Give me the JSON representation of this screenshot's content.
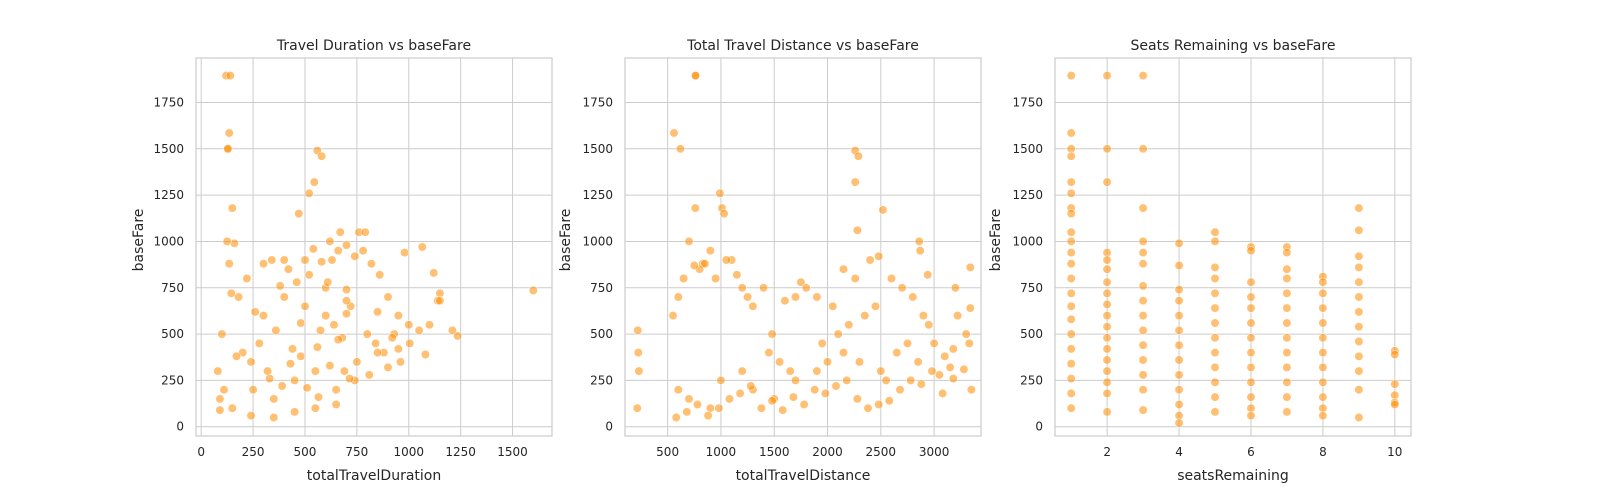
{
  "chart_data": [
    {
      "type": "scatter",
      "title": "Travel Duration vs baseFare",
      "xlabel": "totalTravelDuration",
      "ylabel": "baseFare",
      "xlim": [
        -25,
        1690
      ],
      "ylim": [
        -50,
        1990
      ],
      "xticks": [
        0,
        250,
        500,
        750,
        1000,
        1250,
        1500
      ],
      "yticks": [
        0,
        250,
        500,
        750,
        1000,
        1250,
        1500,
        1750
      ],
      "grid": true,
      "color": "#ff8c00",
      "point_opacity": 0.55,
      "x": [
        120,
        140,
        130,
        135,
        128,
        560,
        520,
        580,
        470,
        545,
        670,
        760,
        790,
        980,
        1065,
        1235,
        1600,
        1150,
        1140,
        1210,
        1120,
        1050,
        930,
        850,
        700,
        630,
        400,
        150,
        160,
        180,
        220,
        260,
        300,
        340,
        380,
        420,
        460,
        500,
        540,
        580,
        620,
        660,
        700,
        740,
        780,
        820,
        860,
        900,
        950,
        1000,
        80,
        90,
        100,
        110,
        200,
        240,
        280,
        320,
        360,
        440,
        480,
        600,
        640,
        680,
        720,
        800,
        840,
        880,
        920,
        960,
        150,
        250,
        350,
        450,
        550,
        650,
        750,
        850,
        950,
        1100,
        300,
        400,
        500,
        600,
        700,
        350,
        450,
        550,
        650,
        520,
        610,
        480,
        700,
        560,
        330,
        430,
        170,
        90,
        240,
        390,
        690,
        740,
        810,
        900,
        1005,
        1080,
        1150,
        125,
        135,
        145,
        510,
        565,
        575,
        620,
        660,
        715
      ],
      "y": [
        1895,
        1895,
        1500,
        1585,
        1500,
        1490,
        1260,
        1460,
        1150,
        1320,
        1050,
        1050,
        1050,
        940,
        970,
        490,
        735,
        720,
        680,
        520,
        830,
        520,
        500,
        620,
        740,
        900,
        900,
        1180,
        990,
        700,
        800,
        620,
        880,
        900,
        760,
        850,
        780,
        900,
        960,
        890,
        1000,
        950,
        980,
        920,
        950,
        880,
        820,
        700,
        600,
        550,
        300,
        150,
        500,
        200,
        400,
        350,
        450,
        300,
        520,
        420,
        380,
        600,
        550,
        480,
        650,
        500,
        450,
        400,
        480,
        350,
        100,
        200,
        150,
        250,
        300,
        200,
        350,
        400,
        420,
        550,
        600,
        700,
        650,
        750,
        680,
        50,
        80,
        100,
        120,
        820,
        780,
        560,
        610,
        430,
        260,
        340,
        380,
        90,
        60,
        220,
        300,
        250,
        280,
        320,
        450,
        390,
        680,
        1000,
        880,
        720,
        210,
        160,
        520,
        330,
        470,
        260
      ]
    },
    {
      "type": "scatter",
      "title": "Total Travel Distance vs baseFare",
      "xlabel": "totalTravelDistance",
      "ylabel": "baseFare",
      "xlim": [
        100,
        3440
      ],
      "ylim": [
        -50,
        1990
      ],
      "xticks": [
        500,
        1000,
        1500,
        2000,
        2500,
        3000
      ],
      "yticks": [
        0,
        250,
        500,
        750,
        1000,
        1250,
        1500,
        1750
      ],
      "grid": true,
      "color": "#ff8c00",
      "point_opacity": 0.55,
      "x": [
        760,
        762,
        560,
        620,
        990,
        1010,
        1030,
        760,
        2260,
        2290,
        2260,
        2280,
        2520,
        2260,
        1750,
        1700,
        1150,
        1300,
        1480,
        1100,
        950,
        830,
        700,
        2480,
        2860,
        2870,
        2940,
        3340,
        3340,
        3330,
        3200,
        3180,
        3220,
        2900,
        2600,
        2400,
        2150,
        2050,
        1900,
        1800,
        1600,
        1400,
        1250,
        1200,
        1050,
        900,
        850,
        800,
        750,
        650,
        600,
        550,
        220,
        225,
        230,
        215,
        1450,
        1550,
        1650,
        1950,
        2100,
        2200,
        2350,
        2450,
        2700,
        2800,
        2950,
        3000,
        3100,
        3300,
        600,
        700,
        900,
        1000,
        1200,
        1300,
        1500,
        1700,
        1900,
        2000,
        2150,
        2300,
        2500,
        2550,
        2650,
        2750,
        2850,
        3050,
        3150,
        3350,
        580,
        680,
        780,
        880,
        980,
        1080,
        1180,
        1280,
        1380,
        1480,
        1580,
        1680,
        1780,
        1880,
        1980,
        2080,
        2180,
        2280,
        2380,
        2480,
        2580,
        2680,
        2780,
        2880,
        2980,
        3080,
        3180,
        3280
      ],
      "y": [
        1895,
        1895,
        1585,
        1500,
        1260,
        1180,
        1150,
        1180,
        1490,
        1460,
        1320,
        1060,
        1170,
        800,
        780,
        700,
        820,
        650,
        500,
        900,
        800,
        880,
        1000,
        920,
        1000,
        950,
        820,
        860,
        640,
        450,
        750,
        420,
        600,
        600,
        800,
        900,
        850,
        650,
        700,
        750,
        680,
        750,
        700,
        750,
        900,
        950,
        880,
        850,
        870,
        800,
        700,
        600,
        520,
        400,
        300,
        100,
        400,
        350,
        300,
        450,
        500,
        550,
        600,
        650,
        750,
        700,
        550,
        450,
        380,
        500,
        200,
        150,
        100,
        250,
        300,
        200,
        150,
        250,
        300,
        350,
        400,
        350,
        300,
        250,
        400,
        450,
        350,
        280,
        320,
        200,
        50,
        80,
        120,
        60,
        100,
        150,
        180,
        220,
        100,
        140,
        90,
        160,
        120,
        200,
        180,
        220,
        250,
        150,
        100,
        120,
        140,
        200,
        250,
        230,
        300,
        180,
        260,
        310
      ]
    },
    {
      "type": "scatter",
      "title": "Seats Remaining vs baseFare",
      "xlabel": "seatsRemaining",
      "ylabel": "baseFare",
      "xlim": [
        0.55,
        10.45
      ],
      "ylim": [
        -50,
        1990
      ],
      "xticks": [
        2,
        4,
        6,
        8,
        10
      ],
      "yticks": [
        0,
        250,
        500,
        750,
        1000,
        1250,
        1500,
        1750
      ],
      "grid": true,
      "color": "#ff8c00",
      "point_opacity": 0.55,
      "x": [
        1,
        1,
        1,
        1,
        1,
        1,
        1,
        1,
        1,
        1,
        1,
        1,
        1,
        1,
        1,
        1,
        1,
        1,
        1,
        1,
        1,
        1,
        2,
        2,
        2,
        2,
        2,
        2,
        2,
        2,
        2,
        2,
        2,
        2,
        2,
        2,
        2,
        2,
        2,
        2,
        3,
        3,
        3,
        3,
        3,
        3,
        3,
        3,
        3,
        3,
        3,
        3,
        3,
        3,
        3,
        4,
        4,
        4,
        4,
        4,
        4,
        4,
        4,
        4,
        4,
        4,
        4,
        4,
        5,
        5,
        5,
        5,
        5,
        5,
        5,
        5,
        5,
        5,
        5,
        5,
        5,
        6,
        6,
        6,
        6,
        6,
        6,
        6,
        6,
        6,
        6,
        6,
        6,
        6,
        7,
        7,
        7,
        7,
        7,
        7,
        7,
        7,
        7,
        7,
        7,
        7,
        7,
        8,
        8,
        8,
        8,
        8,
        8,
        8,
        8,
        8,
        8,
        8,
        8,
        9,
        9,
        9,
        9,
        9,
        9,
        9,
        9,
        9,
        9,
        9,
        9,
        9,
        10,
        10,
        10,
        10,
        10,
        10
      ],
      "y": [
        1895,
        1585,
        1500,
        1460,
        1320,
        1260,
        1180,
        1150,
        1050,
        1000,
        940,
        880,
        800,
        720,
        650,
        580,
        500,
        420,
        340,
        260,
        180,
        100,
        1895,
        1500,
        1320,
        940,
        900,
        850,
        780,
        720,
        660,
        600,
        540,
        480,
        420,
        360,
        300,
        240,
        180,
        80,
        1895,
        1500,
        1180,
        1000,
        940,
        880,
        760,
        680,
        600,
        520,
        440,
        360,
        280,
        200,
        90,
        990,
        870,
        740,
        680,
        600,
        520,
        440,
        360,
        280,
        200,
        120,
        60,
        20,
        1050,
        1000,
        860,
        800,
        720,
        640,
        560,
        480,
        400,
        320,
        240,
        160,
        80,
        970,
        950,
        780,
        700,
        640,
        560,
        480,
        400,
        320,
        240,
        160,
        100,
        60,
        970,
        940,
        850,
        800,
        720,
        640,
        560,
        480,
        400,
        320,
        240,
        160,
        80,
        810,
        780,
        720,
        640,
        560,
        480,
        400,
        320,
        240,
        160,
        100,
        60,
        1180,
        1060,
        920,
        860,
        780,
        700,
        620,
        540,
        460,
        380,
        300,
        200,
        50,
        410,
        390,
        230,
        170,
        130,
        120
      ]
    }
  ]
}
